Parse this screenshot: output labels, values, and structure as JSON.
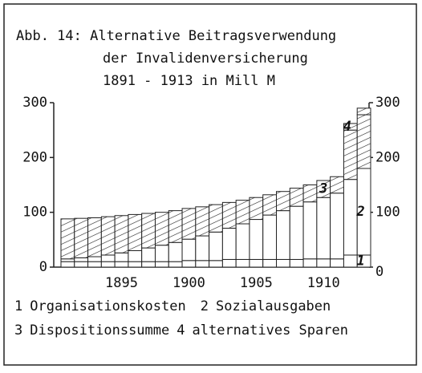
{
  "chart_data": {
    "type": "stacked_bar",
    "title": [
      "Abb. 14: Alternative Beitragsverwendung",
      "der Invalidenversicherung",
      "1891 - 1913  in Mill M"
    ],
    "categories": [
      null,
      null,
      null,
      null,
      "1895",
      null,
      null,
      null,
      null,
      "1900",
      null,
      null,
      null,
      null,
      "1905",
      null,
      null,
      null,
      null,
      "1910",
      null,
      null,
      null
    ],
    "series": [
      {
        "label": "1",
        "name": "Organisationskosten",
        "color": "#ffffff",
        "hatch": false,
        "values": [
          10,
          10,
          10,
          10,
          10,
          10,
          10,
          10,
          10,
          12,
          12,
          12,
          14,
          14,
          14,
          14,
          14,
          14,
          15,
          15,
          15,
          22,
          22
        ]
      },
      {
        "label": "2",
        "name": "Sozialausgaben",
        "color": "#ffffff",
        "hatch": false,
        "values": [
          5,
          7,
          9,
          12,
          16,
          20,
          25,
          30,
          35,
          39,
          45,
          52,
          57,
          65,
          73,
          81,
          89,
          97,
          104,
          112,
          120,
          138,
          158
        ]
      },
      {
        "label": "3",
        "name": "Dispositionssumme",
        "color": "#ffffff",
        "hatch": true,
        "values": [
          73,
          72,
          71,
          70,
          68,
          66,
          63,
          60,
          58,
          56,
          53,
          50,
          47,
          43,
          40,
          37,
          35,
          33,
          31,
          31,
          30,
          90,
          98
        ]
      },
      {
        "label": "4",
        "name": "alternatives Sparen",
        "color": "#ffffff",
        "hatch": true,
        "values": [
          0,
          0,
          0,
          0,
          0,
          0,
          0,
          0,
          0,
          0,
          0,
          0,
          0,
          0,
          0,
          0,
          0,
          0,
          0,
          0,
          0,
          12,
          12
        ]
      }
    ],
    "ylim": [
      0,
      300
    ],
    "yticks": [
      0,
      100,
      200,
      300
    ],
    "y2lim": [
      0,
      300
    ],
    "y2ticks": [
      0,
      100,
      200,
      300
    ]
  }
}
